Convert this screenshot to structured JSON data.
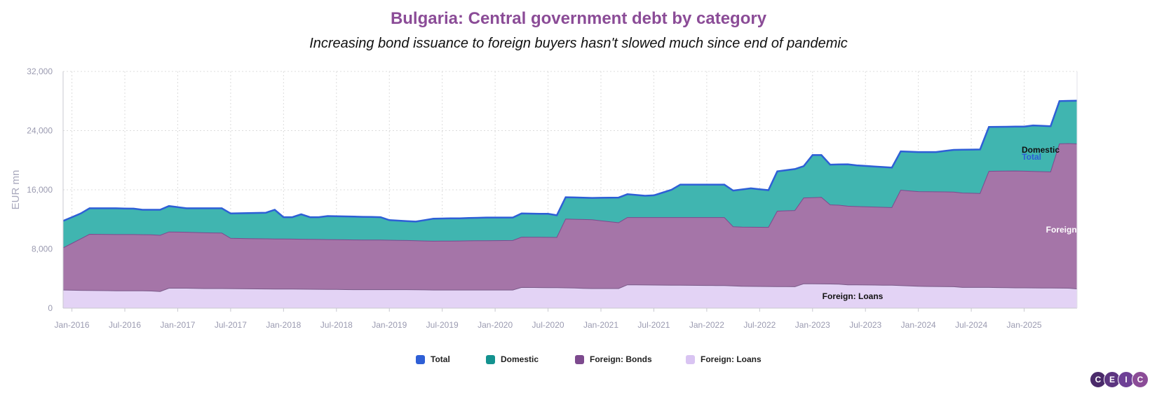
{
  "title": "Bulgaria: Central government debt by category",
  "subtitle": "Increasing bond issuance to foreign buyers hasn't slowed much since end of pandemic",
  "colors": {
    "total": "#2e5fd6",
    "domestic": "#40b5b0",
    "foreign_bonds": "#a575a8",
    "foreign_loans": "#e3d3f5",
    "title": "#8b4c97",
    "axis_text": "#9a9ab0"
  },
  "legend": [
    {
      "label": "Total",
      "color": "#2e5fd6"
    },
    {
      "label": "Domestic",
      "color": "#13928f"
    },
    {
      "label": "Foreign: Bonds",
      "color": "#7d4a8e"
    },
    {
      "label": "Foreign: Loans",
      "color": "#d9c4f2"
    }
  ],
  "logo": [
    "C",
    "E",
    "I",
    "C"
  ],
  "chart_data": {
    "type": "area",
    "stacked": true,
    "ylabel": "EUR mn",
    "ylim": [
      0,
      32000
    ],
    "yticks": [
      0,
      8000,
      16000,
      24000,
      32000
    ],
    "ytick_labels": [
      "0",
      "8,000",
      "16,000",
      "24,000",
      "32,000"
    ],
    "xtick_labels": [
      "Jan-2016",
      "Jul-2016",
      "Jan-2017",
      "Jul-2017",
      "Jan-2018",
      "Jul-2018",
      "Jan-2019",
      "Jul-2019",
      "Jan-2020",
      "Jul-2020",
      "Jan-2021",
      "Jul-2021",
      "Jan-2022",
      "Jul-2022",
      "Jan-2023",
      "Jul-2023",
      "Jan-2024",
      "Jul-2024",
      "Jan-2025"
    ],
    "x_start": "2015-12",
    "x_end": "2025-07",
    "grid": true,
    "legend_position": "bottom",
    "annotations": [
      {
        "text": "Total",
        "series": "Total"
      },
      {
        "text": "Domestic",
        "series": "Domestic"
      },
      {
        "text": "Foreign: Bonds",
        "series": "Foreign: Bonds"
      },
      {
        "text": "Foreign: Loans",
        "series": "Foreign: Loans"
      }
    ],
    "series": [
      {
        "name": "Foreign: Loans",
        "points": [
          [
            "2015-12",
            2450
          ],
          [
            "2016-02",
            2400
          ],
          [
            "2016-04",
            2380
          ],
          [
            "2016-06",
            2350
          ],
          [
            "2016-08",
            2350
          ],
          [
            "2016-10",
            2320
          ],
          [
            "2016-11",
            2250
          ],
          [
            "2016-12",
            2700
          ],
          [
            "2017-02",
            2700
          ],
          [
            "2017-04",
            2650
          ],
          [
            "2017-06",
            2650
          ],
          [
            "2017-10",
            2600
          ],
          [
            "2018-01",
            2580
          ],
          [
            "2018-05",
            2550
          ],
          [
            "2018-09",
            2500
          ],
          [
            "2019-03",
            2500
          ],
          [
            "2019-06",
            2450
          ],
          [
            "2019-10",
            2450
          ],
          [
            "2020-03",
            2450
          ],
          [
            "2020-04",
            2800
          ],
          [
            "2020-09",
            2750
          ],
          [
            "2020-12",
            2650
          ],
          [
            "2021-03",
            2650
          ],
          [
            "2021-04",
            3150
          ],
          [
            "2021-10",
            3100
          ],
          [
            "2022-03",
            3050
          ],
          [
            "2022-05",
            2950
          ],
          [
            "2022-11",
            2900
          ],
          [
            "2022-12",
            3300
          ],
          [
            "2023-04",
            3250
          ],
          [
            "2023-05",
            3150
          ],
          [
            "2023-10",
            3100
          ],
          [
            "2024-01",
            2950
          ],
          [
            "2024-05",
            2900
          ],
          [
            "2024-06",
            2800
          ],
          [
            "2024-09",
            2800
          ],
          [
            "2024-12",
            2750
          ],
          [
            "2025-06",
            2700
          ],
          [
            "2025-07",
            2600
          ]
        ]
      },
      {
        "name": "Foreign: Bonds",
        "points": [
          [
            "2015-12",
            5700
          ],
          [
            "2016-03",
            7600
          ],
          [
            "2016-12",
            7600
          ],
          [
            "2017-06",
            7500
          ],
          [
            "2017-07",
            6800
          ],
          [
            "2018-12",
            6700
          ],
          [
            "2019-06",
            6600
          ],
          [
            "2020-03",
            6700
          ],
          [
            "2020-04",
            6800
          ],
          [
            "2020-08",
            6800
          ],
          [
            "2020-09",
            9300
          ],
          [
            "2020-12",
            9300
          ],
          [
            "2021-03",
            8900
          ],
          [
            "2021-04",
            9100
          ],
          [
            "2022-03",
            9200
          ],
          [
            "2022-04",
            8000
          ],
          [
            "2022-08",
            8000
          ],
          [
            "2022-09",
            10200
          ],
          [
            "2022-11",
            10300
          ],
          [
            "2022-12",
            11600
          ],
          [
            "2023-02",
            11700
          ],
          [
            "2023-03",
            10700
          ],
          [
            "2023-06",
            10600
          ],
          [
            "2023-10",
            10500
          ],
          [
            "2023-11",
            12900
          ],
          [
            "2024-01",
            12800
          ],
          [
            "2024-05",
            12800
          ],
          [
            "2024-08",
            12700
          ],
          [
            "2024-09",
            15700
          ],
          [
            "2024-12",
            15800
          ],
          [
            "2025-04",
            15700
          ],
          [
            "2025-05",
            19500
          ],
          [
            "2025-07",
            19600
          ]
        ]
      },
      {
        "name": "Domestic",
        "points": [
          [
            "2015-12",
            3800
          ],
          [
            "2016-03",
            3500
          ],
          [
            "2016-06",
            3500
          ],
          [
            "2016-11",
            3600
          ],
          [
            "2016-12",
            3400
          ],
          [
            "2017-06",
            3500
          ],
          [
            "2017-07",
            3400
          ],
          [
            "2017-11",
            3600
          ],
          [
            "2017-12",
            4000
          ],
          [
            "2018-01",
            3000
          ],
          [
            "2018-03",
            3400
          ],
          [
            "2018-05",
            3100
          ],
          [
            "2018-12",
            3200
          ],
          [
            "2019-04",
            2700
          ],
          [
            "2019-07",
            2800
          ],
          [
            "2019-12",
            3000
          ],
          [
            "2020-03",
            3200
          ],
          [
            "2020-04",
            3200
          ],
          [
            "2020-08",
            3000
          ],
          [
            "2020-09",
            3000
          ],
          [
            "2021-01",
            3000
          ],
          [
            "2021-03",
            3100
          ],
          [
            "2021-04",
            3100
          ],
          [
            "2021-07",
            3300
          ],
          [
            "2021-10",
            4500
          ],
          [
            "2022-03",
            4500
          ],
          [
            "2022-04",
            4800
          ],
          [
            "2022-08",
            5100
          ],
          [
            "2022-09",
            5500
          ],
          [
            "2022-11",
            5700
          ],
          [
            "2022-12",
            5900
          ],
          [
            "2023-02",
            5700
          ],
          [
            "2023-03",
            5500
          ],
          [
            "2023-09",
            5500
          ],
          [
            "2023-11",
            5400
          ],
          [
            "2024-01",
            5400
          ],
          [
            "2024-05",
            5500
          ],
          [
            "2024-06",
            5900
          ],
          [
            "2024-08",
            5900
          ],
          [
            "2024-09",
            6000
          ],
          [
            "2025-01",
            6000
          ],
          [
            "2025-02",
            6200
          ],
          [
            "2025-04",
            6000
          ],
          [
            "2025-05",
            5500
          ],
          [
            "2025-07",
            5500
          ]
        ]
      },
      {
        "name": "Total",
        "points": [
          [
            "2015-12",
            11800
          ],
          [
            "2016-02",
            12800
          ],
          [
            "2016-03",
            13500
          ],
          [
            "2016-06",
            13500
          ],
          [
            "2016-08",
            13450
          ],
          [
            "2016-09",
            13300
          ],
          [
            "2016-11",
            13300
          ],
          [
            "2016-12",
            13800
          ],
          [
            "2017-02",
            13500
          ],
          [
            "2017-06",
            13500
          ],
          [
            "2017-07",
            12800
          ],
          [
            "2017-11",
            12900
          ],
          [
            "2017-12",
            13300
          ],
          [
            "2018-01",
            12300
          ],
          [
            "2018-02",
            12300
          ],
          [
            "2018-03",
            12700
          ],
          [
            "2018-04",
            12300
          ],
          [
            "2018-05",
            12300
          ],
          [
            "2018-06",
            12450
          ],
          [
            "2018-12",
            12300
          ],
          [
            "2019-01",
            11900
          ],
          [
            "2019-04",
            11700
          ],
          [
            "2019-06",
            12100
          ],
          [
            "2019-09",
            12150
          ],
          [
            "2019-12",
            12250
          ],
          [
            "2020-03",
            12250
          ],
          [
            "2020-04",
            12800
          ],
          [
            "2020-07",
            12750
          ],
          [
            "2020-08",
            12550
          ],
          [
            "2020-09",
            15000
          ],
          [
            "2020-12",
            14900
          ],
          [
            "2021-03",
            14950
          ],
          [
            "2021-04",
            15400
          ],
          [
            "2021-06",
            15200
          ],
          [
            "2021-07",
            15250
          ],
          [
            "2021-09",
            16000
          ],
          [
            "2021-10",
            16700
          ],
          [
            "2022-03",
            16700
          ],
          [
            "2022-04",
            15900
          ],
          [
            "2022-06",
            16200
          ],
          [
            "2022-08",
            15950
          ],
          [
            "2022-09",
            18500
          ],
          [
            "2022-11",
            18800
          ],
          [
            "2022-12",
            19200
          ],
          [
            "2023-01",
            20700
          ],
          [
            "2023-02",
            20700
          ],
          [
            "2023-03",
            19400
          ],
          [
            "2023-05",
            19450
          ],
          [
            "2023-06",
            19300
          ],
          [
            "2023-10",
            19000
          ],
          [
            "2023-11",
            21200
          ],
          [
            "2024-01",
            21100
          ],
          [
            "2024-03",
            21100
          ],
          [
            "2024-05",
            21400
          ],
          [
            "2024-08",
            21450
          ],
          [
            "2024-09",
            24500
          ],
          [
            "2025-01",
            24550
          ],
          [
            "2025-02",
            24700
          ],
          [
            "2025-04",
            24600
          ],
          [
            "2025-05",
            28000
          ],
          [
            "2025-07",
            28050
          ]
        ]
      }
    ]
  }
}
